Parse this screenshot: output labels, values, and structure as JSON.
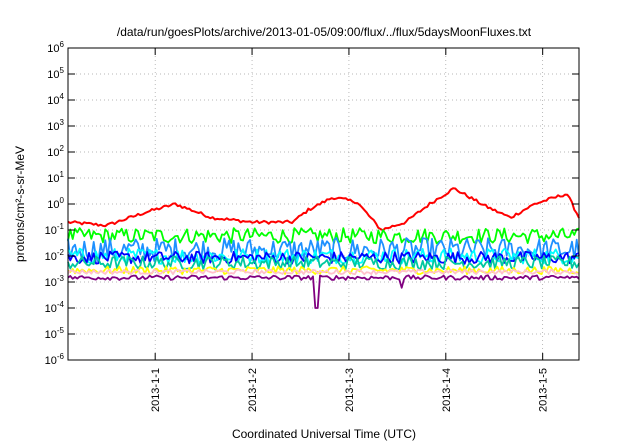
{
  "chart_data": {
    "type": "line",
    "title": "/data/run/goesPlots/archive/2013-01-05/09:00/flux/../flux/5daysMoonFluxes.txt",
    "xlabel": "Coordinated Universal Time (UTC)",
    "ylabel": "protons/cm²-s-sr-MeV",
    "yscale": "log",
    "ylim": [
      1e-06,
      1000000.0
    ],
    "xlim": [
      "2012-12-31 02:24",
      "2013-01-05 09:00"
    ],
    "x_ticks": [
      "2013-1-1",
      "2013-1-2",
      "2013-1-3",
      "2013-1-4",
      "2013-1-5"
    ],
    "x_tick_dates": [
      "2013-01-01",
      "2013-01-02",
      "2013-01-03",
      "2013-01-04",
      "2013-01-05"
    ],
    "y_tick_exponents": [
      -6,
      -5,
      -4,
      -3,
      -2,
      -1,
      0,
      1,
      2,
      3,
      4,
      5,
      6
    ],
    "grid": true,
    "legend": "none",
    "series_colors": [
      "#ff0000",
      "#00ff00",
      "#1e90ff",
      "#00ffff",
      "#0000ff",
      "#00c8a0",
      "#ffff00",
      "#ffc0cb",
      "#800080"
    ],
    "series": [
      {
        "color": "#ff0000",
        "x": [
          "2012-12-31 02:24",
          "2012-12-31 12:00",
          "2012-12-31 22:00",
          "2013-01-01 05:00",
          "2013-01-01 14:00",
          "2013-01-02 00:00",
          "2013-01-02 10:00",
          "2013-01-02 14:00",
          "2013-01-02 20:00",
          "2013-01-03 02:00",
          "2013-01-03 08:00",
          "2013-01-03 14:00",
          "2013-01-03 20:00",
          "2013-01-04 02:00",
          "2013-01-04 10:00",
          "2013-01-04 16:00",
          "2013-01-04 22:00",
          "2013-01-05 06:00",
          "2013-01-05 09:00"
        ],
        "values": [
          0.2,
          0.15,
          0.5,
          1.0,
          0.3,
          0.2,
          0.2,
          0.6,
          1.8,
          1.2,
          0.1,
          0.2,
          1.0,
          4.0,
          0.8,
          0.3,
          1.0,
          2.5,
          0.3
        ]
      },
      {
        "color": "#00ff00",
        "values_range": [
          0.03,
          0.12
        ]
      },
      {
        "color": "#1e90ff",
        "values_range": [
          0.006,
          0.05
        ]
      },
      {
        "color": "#00ffff",
        "values_range": [
          0.005,
          0.02
        ]
      },
      {
        "color": "#0000ff",
        "values_range": [
          0.005,
          0.015
        ]
      },
      {
        "color": "#00c8a0",
        "values_range": [
          0.003,
          0.01
        ]
      },
      {
        "color": "#ffff00",
        "values_range": [
          0.002,
          0.004
        ]
      },
      {
        "color": "#ffc0cb",
        "values_range": [
          0.002,
          0.003
        ]
      },
      {
        "color": "#800080",
        "values_range": [
          0.0012,
          0.0018
        ],
        "dips": [
          {
            "x": "2013-01-02 16:00",
            "value": 0.0001
          },
          {
            "x": "2013-01-03 13:00",
            "value": 0.0006
          }
        ]
      }
    ]
  }
}
